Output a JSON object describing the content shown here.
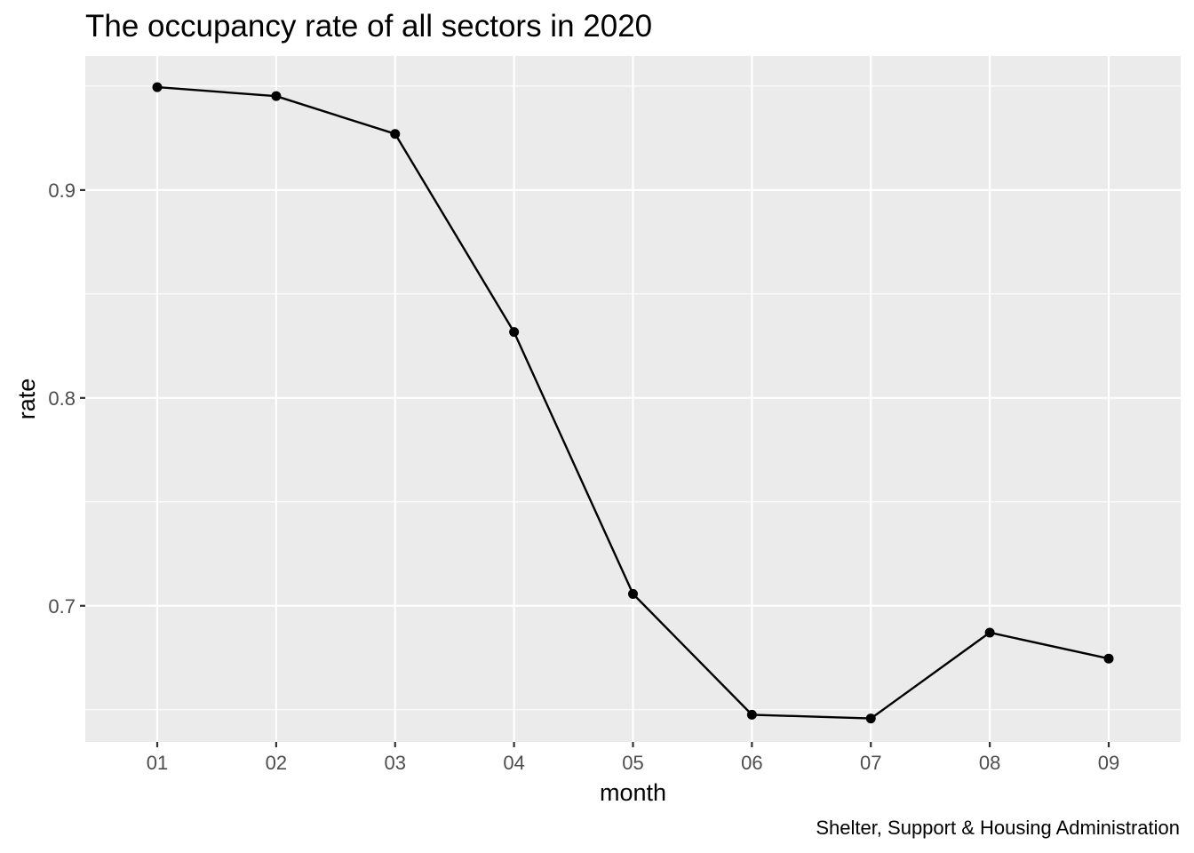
{
  "chart_data": {
    "type": "line",
    "title": "The occupancy rate of all sectors in 2020",
    "xlabel": "month",
    "ylabel": "rate",
    "caption": "Shelter, Support & Housing Administration",
    "categories": [
      "01",
      "02",
      "03",
      "04",
      "05",
      "06",
      "07",
      "08",
      "09"
    ],
    "series": [
      {
        "values": [
          0.9495,
          0.9452,
          0.927,
          0.8317,
          0.7057,
          0.6476,
          0.6458,
          0.6871,
          0.6746
        ]
      }
    ],
    "yticks": [
      0.7,
      0.8,
      0.9
    ],
    "ytick_labels": [
      "0.7",
      "0.8",
      "0.9"
    ],
    "ylim": [
      0.6345,
      0.9645
    ],
    "grid": true,
    "colors": {
      "panel_background": "#ebebeb",
      "grid_line": "#ffffff",
      "series_line": "#000000",
      "tick_label": "#4d4d4d"
    }
  }
}
